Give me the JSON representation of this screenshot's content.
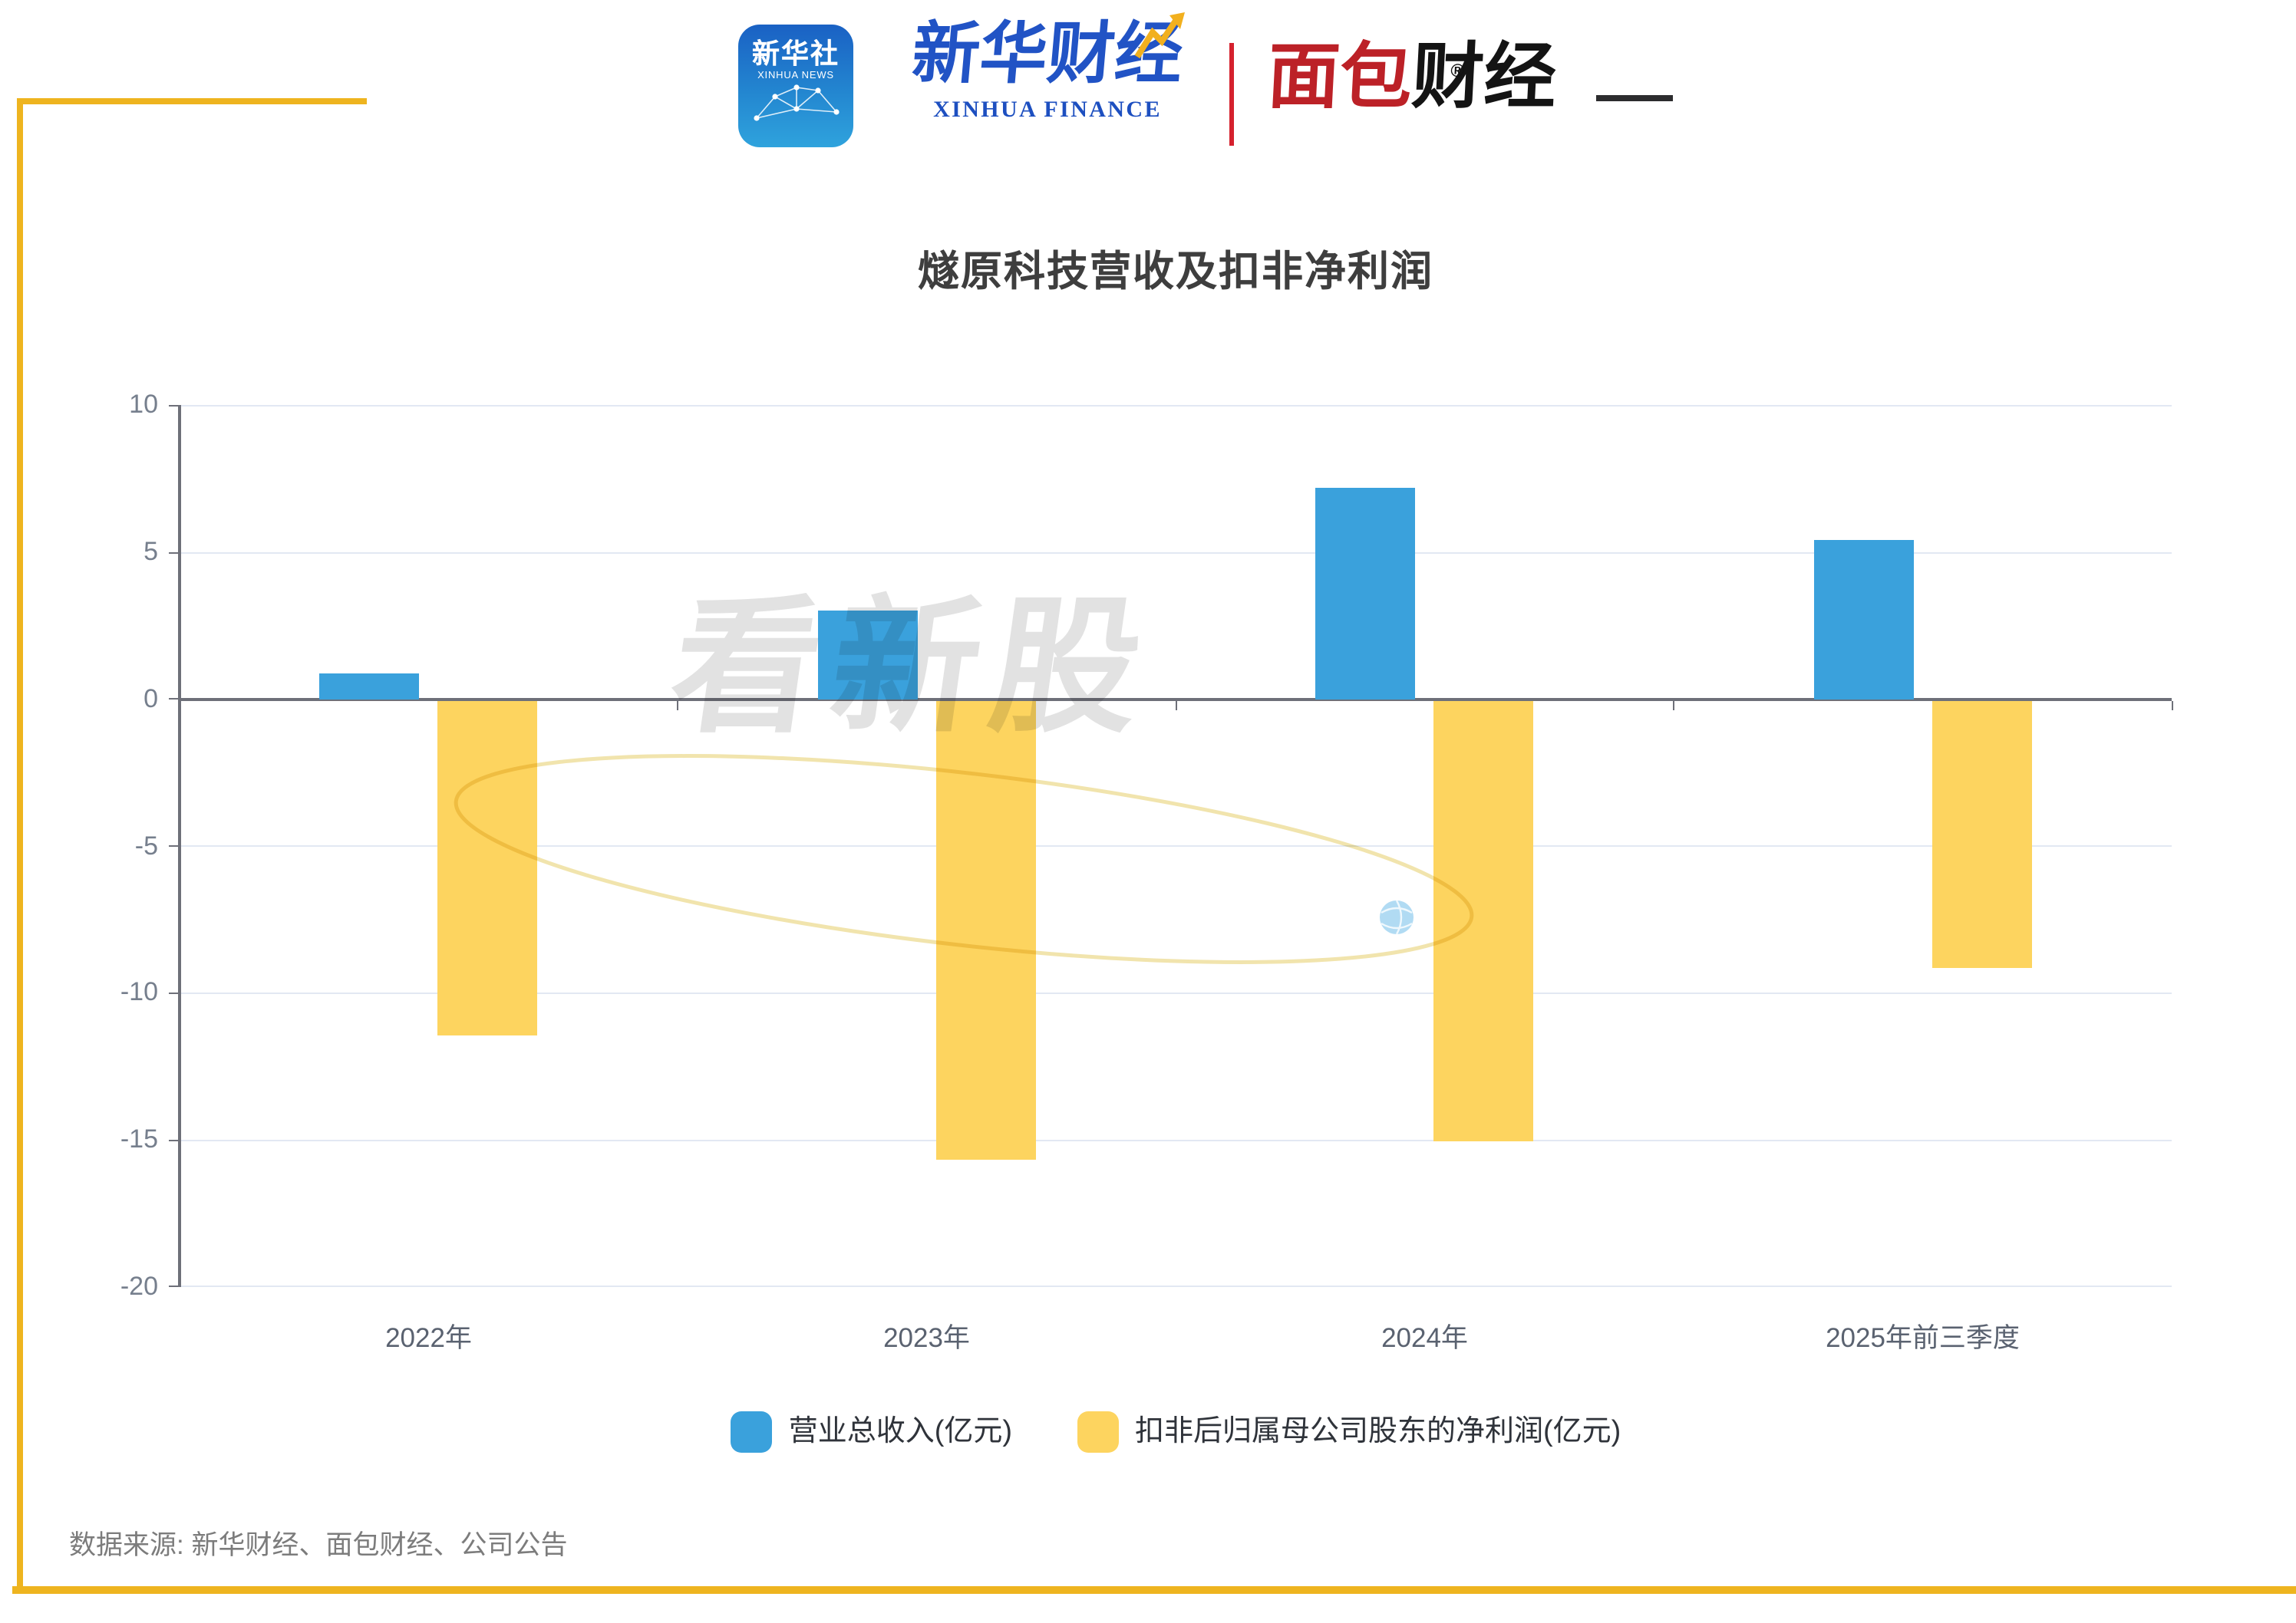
{
  "header": {
    "xinhua_news_icon": {
      "title": "新华社",
      "subtitle": "XINHUA NEWS"
    },
    "xinhua_finance": {
      "cn": "新华财经",
      "en": "XINHUA FINANCE"
    },
    "mianbao_finance": {
      "part_red": "面包",
      "part_black": "财经",
      "reg_mark": "®"
    }
  },
  "chart_data": {
    "type": "bar",
    "title": "燧原科技营收及扣非净利润",
    "categories": [
      "2022年",
      "2023年",
      "2024年",
      "2025年前三季度"
    ],
    "series": [
      {
        "name": "营业总收入(亿元)",
        "color": "#3aa1dc",
        "values": [
          0.9,
          3.0,
          7.2,
          5.4
        ]
      },
      {
        "name": "扣非后归属母公司股东的净利润(亿元)",
        "color": "#fdd45f",
        "values": [
          -11.4,
          -15.6,
          -15.0,
          -9.1
        ]
      }
    ],
    "ylim": [
      -20,
      10
    ],
    "yticks": [
      10,
      5,
      0,
      -5,
      -10,
      -15,
      -20
    ],
    "grid": true,
    "legend_position": "bottom",
    "watermark": "看新股"
  },
  "source_note": "数据来源: 新华财经、面包财经、公司公告",
  "colors": {
    "revenue_bar": "#3aa1dc",
    "profit_bar": "#fdd45f",
    "frame_yellow": "#eeb41f",
    "axis": "#6E7079",
    "gridline": "#e2e8f3",
    "title_text": "#3e3e3e",
    "tick_text": "#767f8d",
    "source_text": "#7c7c7c",
    "watermark_text": "#e2e2e2",
    "watermark_orbit": "#eedf9f"
  }
}
